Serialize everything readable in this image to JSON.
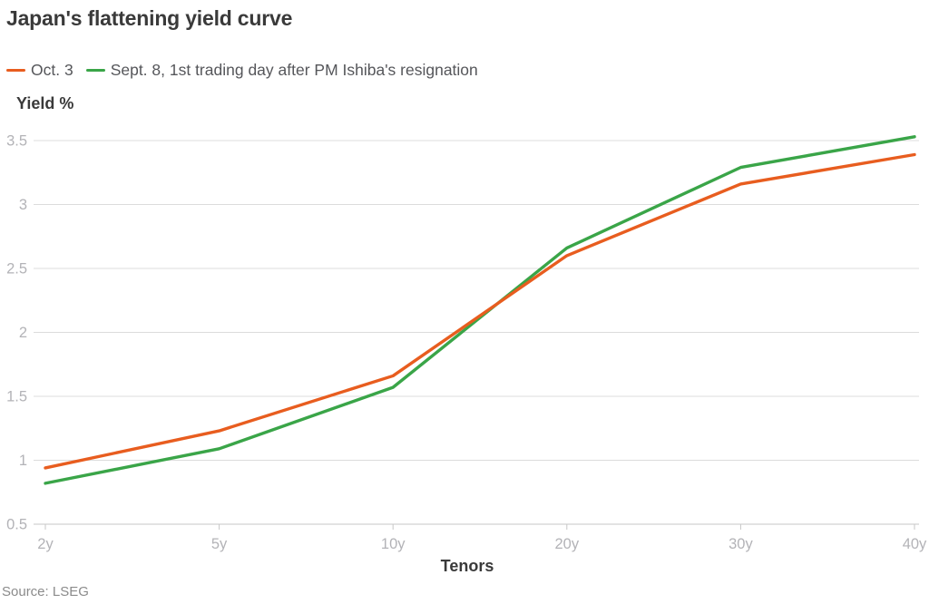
{
  "title": "Japan's flattening yield curve",
  "source": "Source: LSEG",
  "chart_data": {
    "type": "line",
    "categories": [
      "2y",
      "5y",
      "10y",
      "20y",
      "30y",
      "40y"
    ],
    "series": [
      {
        "name": "Oct. 3",
        "color": "#e85d1f",
        "values": [
          0.94,
          1.23,
          1.66,
          2.6,
          3.16,
          3.39
        ]
      },
      {
        "name": "Sept. 8, 1st trading day after PM Ishiba's resignation",
        "color": "#3aa548",
        "values": [
          0.82,
          1.09,
          1.57,
          2.66,
          3.29,
          3.53
        ]
      }
    ],
    "xlabel": "Tenors",
    "ylabel": "Yield %",
    "ylim": [
      0.5,
      3.5
    ],
    "yticks": [
      0.5,
      1,
      1.5,
      2,
      2.5,
      3,
      3.5
    ],
    "grid": true,
    "legend_position": "top-left"
  }
}
